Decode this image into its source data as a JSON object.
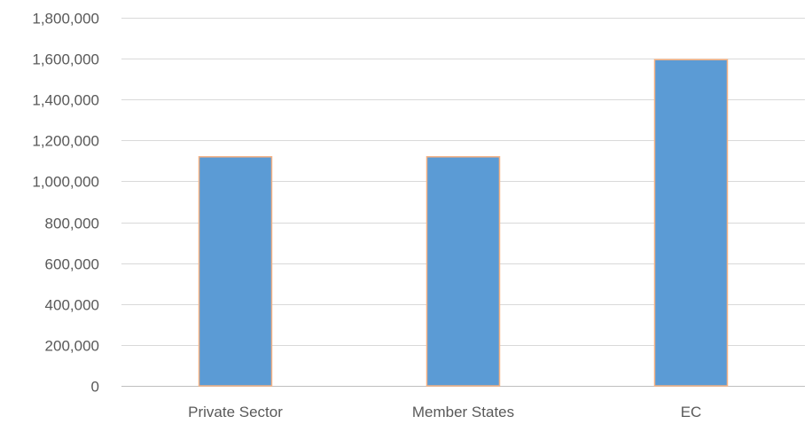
{
  "chart_data": {
    "type": "bar",
    "categories": [
      "Private Sector",
      "Member States",
      "EC"
    ],
    "values": [
      1120000,
      1120000,
      1595000
    ],
    "title": "",
    "xlabel": "",
    "ylabel": "",
    "ylim": [
      0,
      1800000
    ],
    "yticks": [
      0,
      200000,
      400000,
      600000,
      800000,
      1000000,
      1200000,
      1400000,
      1600000,
      1800000
    ],
    "ytick_labels": [
      "0",
      "200,000",
      "400,000",
      "600,000",
      "800,000",
      "1,000,000",
      "1,200,000",
      "1,400,000",
      "1,600,000",
      "1,800,000"
    ],
    "grid": true,
    "legend": "none",
    "colors": {
      "bar_fill": "#5b9bd5",
      "bar_edge": "#f4b183",
      "grid": "#d9d9d9",
      "text": "#595959"
    }
  }
}
